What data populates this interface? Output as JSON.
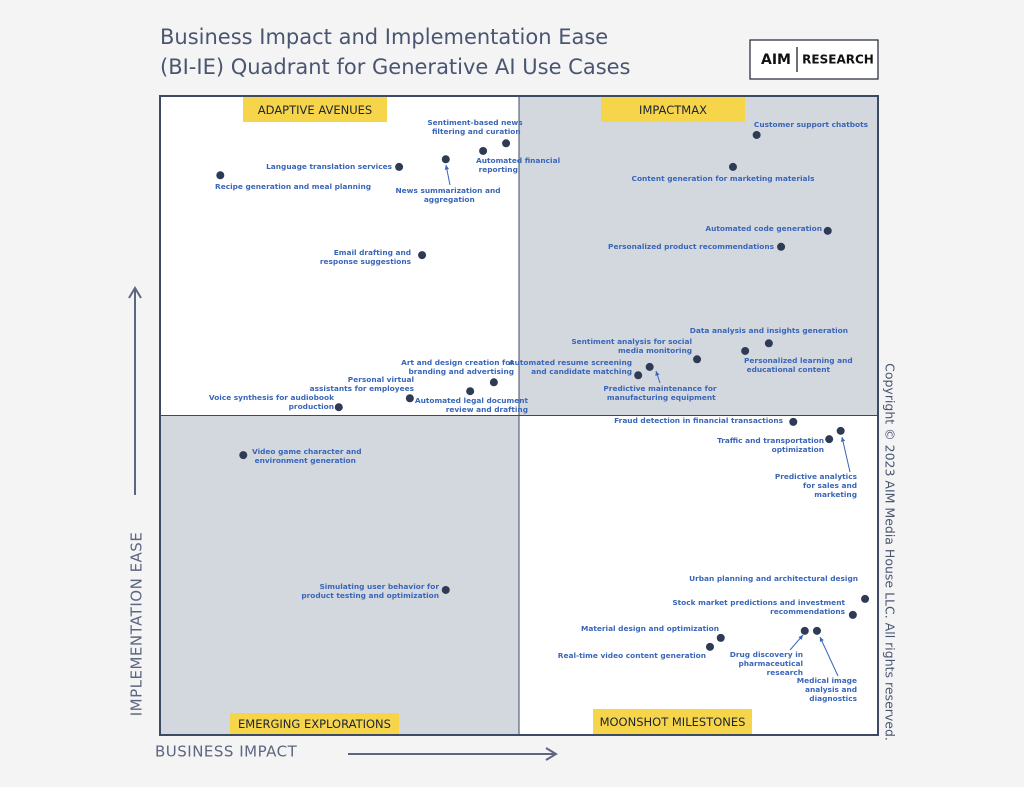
{
  "chart_data": {
    "type": "scatter",
    "title": [
      "Business Impact and Implementation Ease",
      "(BI-IE) Quadrant for Generative AI Use Cases"
    ],
    "brand": [
      "AIM",
      "RESEARCH"
    ],
    "copyright": "Copyright © 2023 AIM Media House LLC. All rights reserved.",
    "x_label": "BUSINESS IMPACT",
    "y_label": "IMPLEMENTATION EASE",
    "quadrants": [
      "ADAPTIVE AVENUES",
      "IMPACTMAX",
      "EMERGING EXPLORATIONS",
      "MOONSHOT MILESTONES"
    ],
    "xlim": [
      0,
      100
    ],
    "ylim": [
      0,
      100
    ],
    "color": "#2f3a55",
    "labels": [
      "Recipe generation and meal planning",
      "Language translation services",
      "News summarization and aggregation",
      "Sentiment-based news filtering and curation",
      "Automated financial reporting",
      "Email drafting and response suggestions",
      "Art and design creation for branding and advertising",
      "Personal virtual assistants for employees",
      "Automated legal document review and drafting",
      "Voice synthesis for audiobook production",
      "Video game character and environment generation",
      "Simulating user behavior for product testing and optimization",
      "Customer support chatbots",
      "Content generation for marketing materials",
      "Automated code generation",
      "Personalized product recommendations",
      "Data analysis and insights generation",
      "Personalized learning and educational content",
      "Sentiment analysis for social media monitoring",
      "Automated resume screening and candidate matching",
      "Predictive maintenance for manufacturing equipment",
      "Fraud detection in financial transactions",
      "Traffic and transportation optimization",
      "Predictive analytics for sales and marketing",
      "Urban planning and architectural design",
      "Stock market predictions and investment recommendations",
      "Material design and optimization",
      "Real-time video content generation",
      "Drug discovery in pharmaceutical research",
      "Medical image analysis and diagnostics"
    ],
    "x": [
      8.4,
      33.3,
      39.8,
      48.2,
      45.0,
      36.5,
      46.5,
      34.8,
      43.2,
      24.9,
      11.6,
      39.8,
      83.1,
      79.8,
      93.0,
      86.5,
      84.8,
      81.5,
      74.8,
      66.6,
      68.2,
      88.2,
      93.2,
      94.8,
      98.2,
      96.5,
      78.1,
      76.6,
      89.8,
      91.5
    ],
    "y": [
      87.6,
      88.9,
      90.1,
      92.6,
      91.4,
      75.1,
      55.2,
      52.7,
      53.8,
      51.3,
      43.8,
      22.7,
      93.9,
      88.9,
      78.9,
      76.4,
      61.3,
      60.1,
      58.8,
      56.3,
      57.6,
      49.0,
      46.3,
      47.6,
      21.3,
      18.8,
      15.2,
      13.8,
      16.3,
      16.3
    ]
  }
}
